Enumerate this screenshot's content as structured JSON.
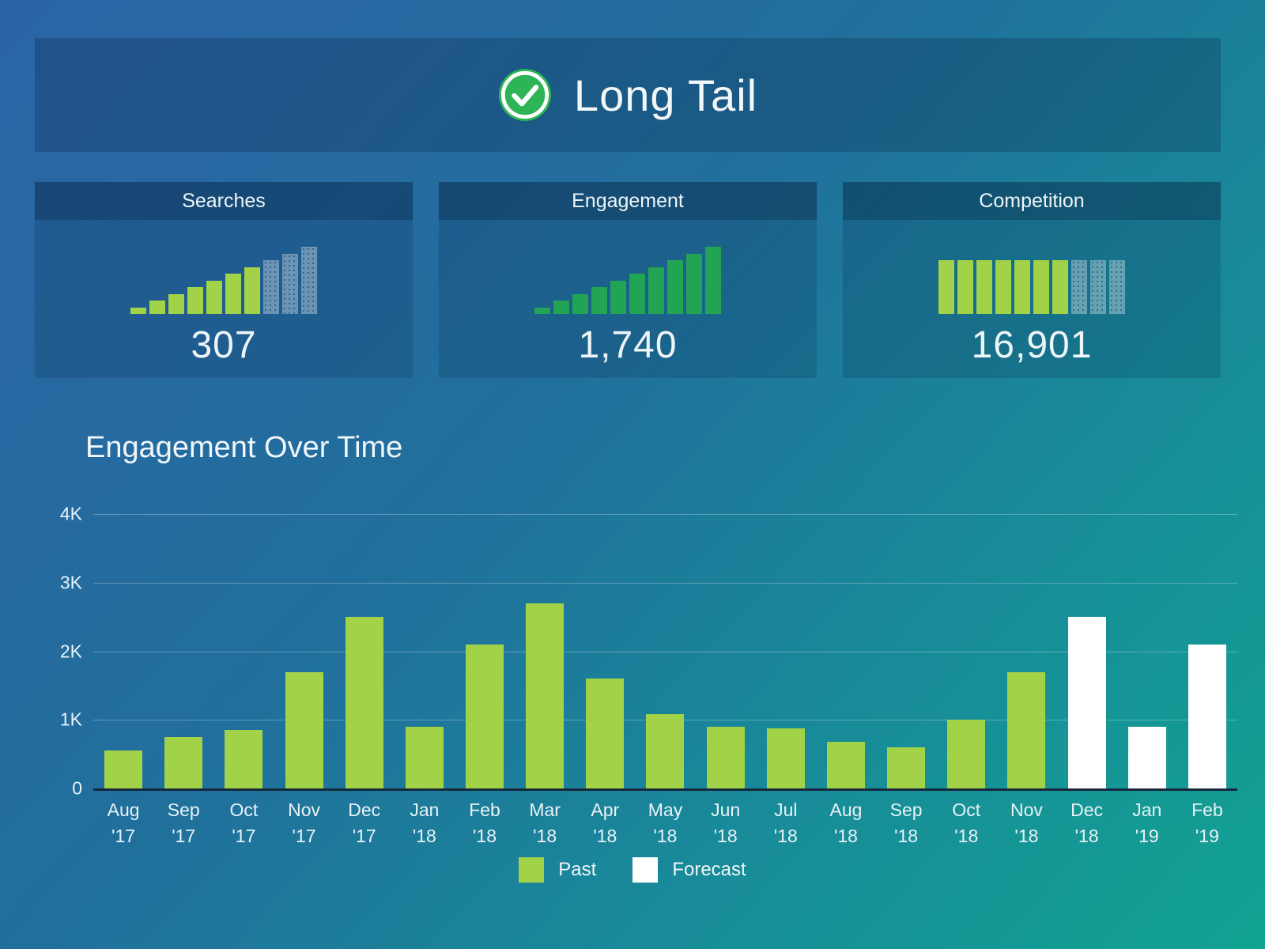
{
  "header": {
    "title": "Long Tail",
    "icon": "check-circle-icon"
  },
  "cards": [
    {
      "title": "Searches",
      "value": "307",
      "mini": {
        "type": "bar",
        "values": [
          1,
          2,
          3,
          4,
          5,
          6,
          7,
          8,
          9,
          10
        ],
        "max": 10,
        "past_count": 7,
        "palette": "lime"
      }
    },
    {
      "title": "Engagement",
      "value": "1,740",
      "mini": {
        "type": "bar",
        "values": [
          1,
          2,
          3,
          4,
          5,
          6,
          7,
          8,
          9,
          10
        ],
        "max": 10,
        "past_count": 10,
        "palette": "green"
      }
    },
    {
      "title": "Competition",
      "value": "16,901",
      "mini": {
        "type": "bar",
        "values": [
          8,
          8,
          8,
          8,
          8,
          8,
          8,
          8,
          8,
          8
        ],
        "max": 10,
        "past_count": 7,
        "palette": "lime"
      }
    }
  ],
  "chart_data": {
    "type": "bar",
    "title": "Engagement Over Time",
    "categories": [
      "Aug '17",
      "Sep '17",
      "Oct '17",
      "Nov '17",
      "Dec '17",
      "Jan '18",
      "Feb '18",
      "Mar '18",
      "Apr '18",
      "May '18",
      "Jun '18",
      "Jul '18",
      "Aug '18",
      "Sep '18",
      "Oct '18",
      "Nov '18",
      "Dec '18",
      "Jan '19",
      "Feb '19"
    ],
    "values": [
      550,
      750,
      850,
      1700,
      2500,
      900,
      2100,
      2700,
      1600,
      1080,
      900,
      880,
      680,
      600,
      1000,
      1700,
      2500,
      900,
      2100
    ],
    "forecast_start_index": 16,
    "series": [
      {
        "name": "Past",
        "color": "#a2d247",
        "values": [
          550,
          750,
          850,
          1700,
          2500,
          900,
          2100,
          2700,
          1600,
          1080,
          900,
          880,
          680,
          600,
          1000,
          1700,
          null,
          null,
          null
        ]
      },
      {
        "name": "Forecast",
        "color": "#ffffff",
        "values": [
          null,
          null,
          null,
          null,
          null,
          null,
          null,
          null,
          null,
          null,
          null,
          null,
          null,
          null,
          null,
          null,
          2500,
          900,
          2100
        ]
      }
    ],
    "xlabel": "",
    "ylabel": "",
    "ylim": [
      0,
      4000
    ],
    "y_ticks": [
      "0",
      "1K",
      "2K",
      "3K",
      "4K"
    ],
    "grid": true,
    "legend_position": "bottom"
  },
  "legend": {
    "items": [
      {
        "label": "Past"
      },
      {
        "label": "Forecast"
      }
    ]
  },
  "colors": {
    "background_top_left": "#2b64a6",
    "background_bottom_right": "#12a392",
    "panel_overlay": "rgba(7,33,64,0.26)",
    "past_lime": "#a2d247",
    "engagement_green": "#22a455",
    "forecast_white": "#ffffff",
    "forecast_faded": "rgba(255,255,255,0.34)",
    "check_circle_green": "#2db457",
    "baseline": "#16293c"
  }
}
